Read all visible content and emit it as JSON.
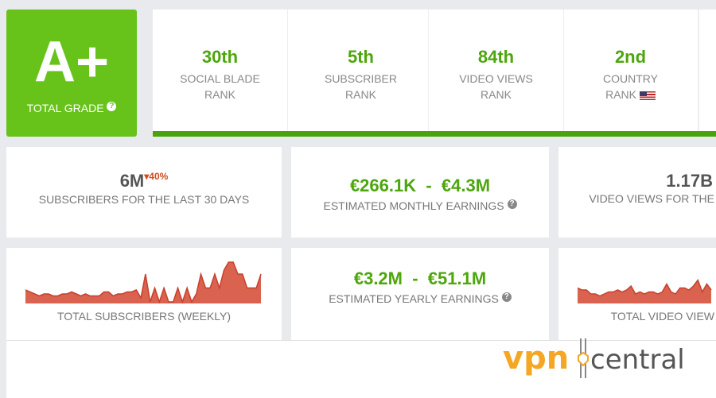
{
  "grade": {
    "value": "A+",
    "label": "TOTAL GRADE",
    "help": "?"
  },
  "ranks": [
    {
      "value": "30th",
      "line1": "SOCIAL BLADE",
      "line2": "RANK"
    },
    {
      "value": "5th",
      "line1": "SUBSCRIBER",
      "line2": "RANK"
    },
    {
      "value": "84th",
      "line1": "VIDEO VIEWS",
      "line2": "RANK"
    },
    {
      "value": "2nd",
      "line1": "COUNTRY",
      "line2": "RANK",
      "flag": "us-flag-icon"
    }
  ],
  "stats": {
    "subs30": {
      "value": "6M",
      "change": "40%",
      "change_dir": "down",
      "label": "SUBSCRIBERS FOR THE LAST 30 DAYS"
    },
    "monthly": {
      "value": "€266.1K  -  €4.3M",
      "label": "ESTIMATED MONTHLY EARNINGS",
      "help": "?"
    },
    "views30": {
      "value": "1.17B",
      "label": "VIDEO VIEWS FOR THE"
    },
    "yearly": {
      "value": "€3.2M  -  €51.1M",
      "label": "ESTIMATED YEARLY EARNINGS",
      "help": "?"
    }
  },
  "charts": {
    "subs": {
      "label": "TOTAL SUBSCRIBERS (WEEKLY)",
      "values": [
        0.3,
        0.25,
        0.2,
        0.15,
        0.2,
        0.2,
        0.15,
        0.15,
        0.2,
        0.2,
        0.25,
        0.2,
        0.15,
        0.2,
        0.15,
        0.15,
        0.15,
        0.25,
        0.25,
        0.15,
        0.2,
        0.2,
        0.25,
        0.25,
        0.3,
        0.1,
        0.7,
        0.0,
        0.35,
        0.0,
        0.35,
        0.0,
        0.0,
        0.35,
        0.0,
        0.35,
        0.0,
        0.2,
        0.7,
        0.35,
        0.35,
        0.7,
        0.35,
        0.8,
        1.0,
        1.0,
        0.7,
        0.7,
        0.35,
        0.35,
        0.35,
        0.7
      ]
    },
    "views": {
      "label": "TOTAL VIDEO VIEW",
      "values": [
        0.35,
        0.3,
        0.3,
        0.2,
        0.2,
        0.15,
        0.2,
        0.25,
        0.25,
        0.3,
        0.25,
        0.3,
        0.4,
        0.2,
        0.25,
        0.2,
        0.25,
        0.25,
        0.2,
        0.25,
        0.45,
        0.25,
        0.2,
        0.35,
        0.35,
        0.3,
        0.4,
        0.55,
        0.25,
        0.45,
        0.3
      ]
    }
  },
  "colors": {
    "green": "#67c21a",
    "spark_fill": "#d9634f",
    "spark_line": "#c7402b",
    "logo_vpn": "#f5a623",
    "logo_central": "#555555"
  },
  "watermark": {
    "text": "vpn central"
  }
}
